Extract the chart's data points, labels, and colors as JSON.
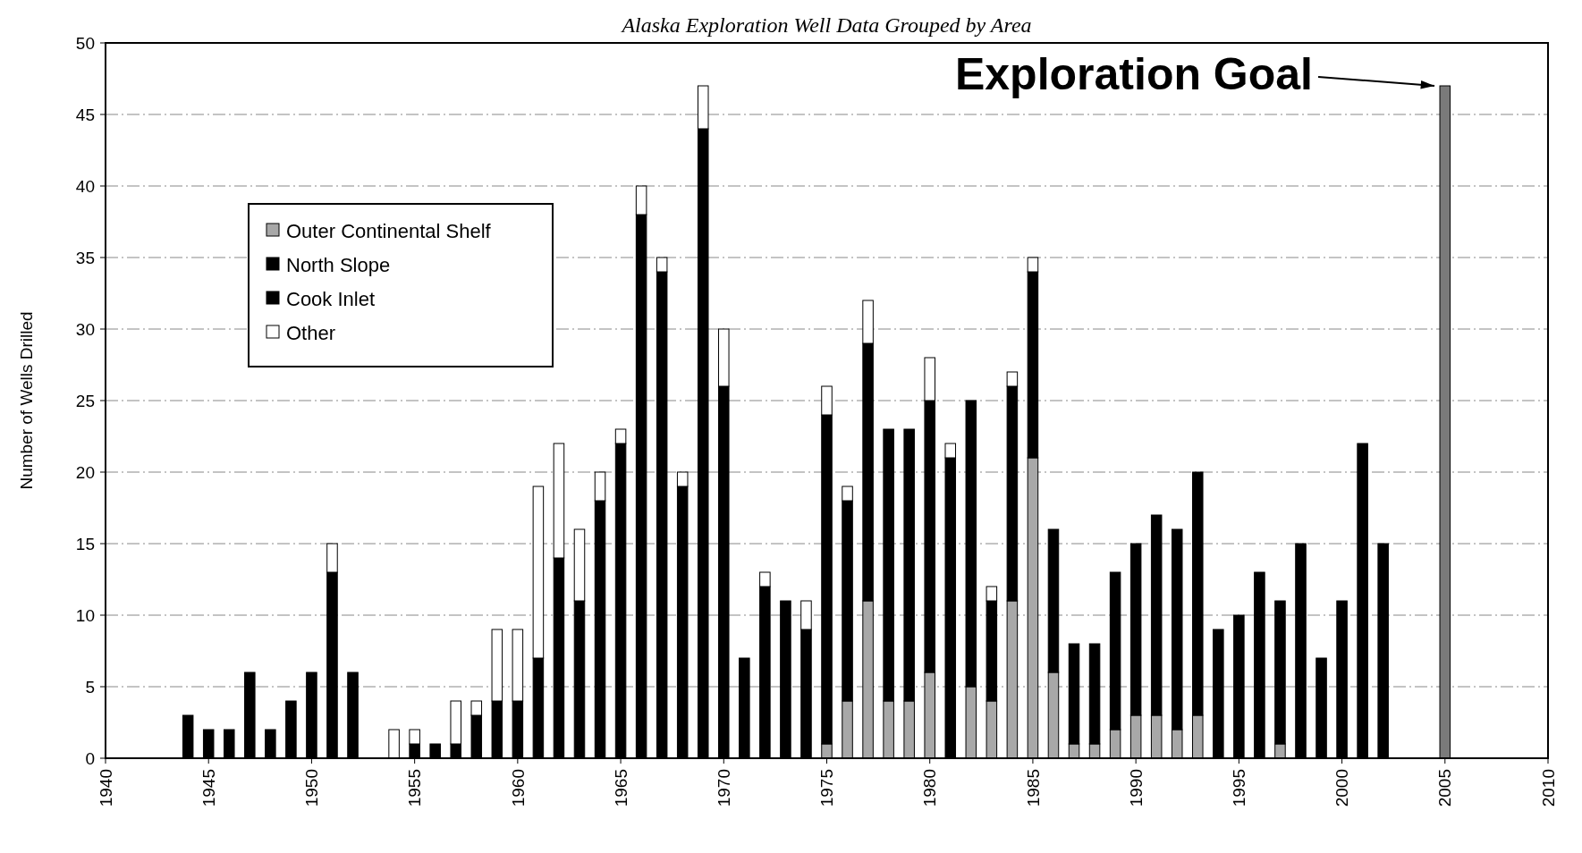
{
  "chart_data": {
    "type": "bar",
    "stacked": true,
    "title": "Alaska Exploration Well Data Grouped by Area",
    "ylabel": "Number of Wells Drilled",
    "x": [
      1944,
      1945,
      1946,
      1947,
      1948,
      1949,
      1950,
      1951,
      1952,
      1954,
      1955,
      1956,
      1957,
      1958,
      1959,
      1960,
      1961,
      1962,
      1963,
      1964,
      1965,
      1966,
      1967,
      1968,
      1969,
      1970,
      1971,
      1972,
      1973,
      1974,
      1975,
      1976,
      1977,
      1978,
      1979,
      1980,
      1981,
      1982,
      1983,
      1984,
      1985,
      1986,
      1987,
      1988,
      1989,
      1990,
      1991,
      1992,
      1993,
      1994,
      1995,
      1996,
      1997,
      1998,
      1999,
      2000,
      2001,
      2002,
      2005
    ],
    "series": [
      {
        "name": "Outer Continental Shelf",
        "color": "#a8a8a8",
        "values": [
          0,
          0,
          0,
          0,
          0,
          0,
          0,
          0,
          0,
          0,
          0,
          0,
          0,
          0,
          0,
          0,
          0,
          0,
          0,
          0,
          0,
          0,
          0,
          0,
          0,
          0,
          0,
          0,
          0,
          0,
          1,
          4,
          11,
          4,
          4,
          6,
          0,
          5,
          4,
          11,
          21,
          6,
          1,
          1,
          2,
          3,
          3,
          2,
          3,
          0,
          0,
          0,
          1,
          0,
          0,
          0,
          0,
          0,
          0
        ]
      },
      {
        "name": "North Slope",
        "color": "#000000",
        "values": [
          3,
          2,
          2,
          6,
          2,
          4,
          6,
          13,
          6,
          0,
          1,
          1,
          1,
          3,
          4,
          4,
          7,
          14,
          11,
          18,
          22,
          38,
          34,
          19,
          44,
          26,
          7,
          12,
          11,
          9,
          23,
          14,
          18,
          19,
          19,
          19,
          21,
          20,
          7,
          15,
          13,
          10,
          7,
          7,
          11,
          12,
          14,
          14,
          17,
          9,
          10,
          13,
          10,
          15,
          7,
          11,
          22,
          15,
          0
        ]
      },
      {
        "name": "Cook Inlet",
        "color": "#000000",
        "values": [
          null,
          null,
          null,
          null,
          null,
          null,
          null,
          null,
          null,
          null,
          null,
          null,
          null,
          null,
          null,
          null,
          null,
          null,
          null,
          null,
          null,
          null,
          null,
          null,
          null,
          null,
          null,
          null,
          null,
          null,
          null,
          null,
          null,
          null,
          null,
          null,
          null,
          null,
          null,
          null,
          null,
          null,
          null,
          null,
          null,
          null,
          null,
          null,
          null,
          null,
          null,
          null,
          null,
          null,
          null,
          null,
          null,
          null,
          null
        ]
      },
      {
        "name": "Other",
        "color": "#ffffff",
        "values": [
          0,
          0,
          0,
          0,
          0,
          0,
          0,
          2,
          0,
          2,
          1,
          0,
          3,
          1,
          5,
          5,
          12,
          8,
          5,
          2,
          1,
          2,
          1,
          1,
          3,
          4,
          0,
          1,
          0,
          2,
          2,
          1,
          3,
          0,
          0,
          3,
          1,
          0,
          1,
          1,
          1,
          0,
          0,
          0,
          0,
          0,
          0,
          0,
          0,
          0,
          0,
          0,
          0,
          0,
          0,
          0,
          0,
          0,
          0
        ]
      },
      {
        "color": "#7a7a7a",
        "values": [
          null,
          null,
          null,
          null,
          null,
          null,
          null,
          null,
          null,
          null,
          null,
          null,
          null,
          null,
          null,
          null,
          null,
          null,
          null,
          null,
          null,
          null,
          null,
          null,
          null,
          null,
          null,
          null,
          null,
          null,
          null,
          null,
          null,
          null,
          null,
          null,
          null,
          null,
          null,
          null,
          null,
          null,
          null,
          null,
          null,
          null,
          null,
          null,
          null,
          null,
          null,
          null,
          null,
          null,
          null,
          null,
          null,
          null,
          47
        ]
      }
    ],
    "xlim": [
      1940,
      2010
    ],
    "xticks": [
      1940,
      1945,
      1950,
      1955,
      1960,
      1965,
      1970,
      1975,
      1980,
      1985,
      1990,
      1995,
      2000,
      2005,
      2010
    ],
    "ylim": [
      0,
      50
    ],
    "yticks": [
      0,
      5,
      10,
      15,
      20,
      25,
      30,
      35,
      40,
      45,
      50
    ],
    "grid": "y",
    "legend": "top left",
    "annotations": [
      {
        "text": "Exploration Goal",
        "x": 2005,
        "y": 47
      }
    ]
  }
}
